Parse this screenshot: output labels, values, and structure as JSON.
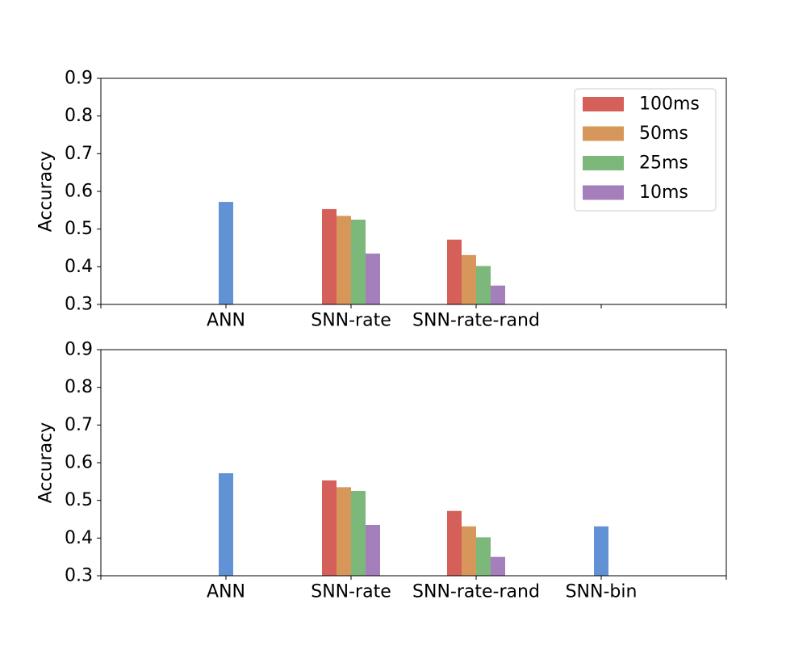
{
  "colors": {
    "100ms": "#d5605a",
    "50ms": "#d7975b",
    "25ms": "#7db87b",
    "10ms": "#a57fbb",
    "single": "#6192d6",
    "axis": "#000000",
    "legend_border": "#cccccc"
  },
  "chart_data": [
    {
      "type": "bar",
      "ylabel": "Accuracy",
      "xlabel": "",
      "ylim": [
        0.3,
        0.9
      ],
      "yticks": [
        "0.3",
        "0.4",
        "0.5",
        "0.6",
        "0.7",
        "0.8",
        "0.9"
      ],
      "xlim": [
        0,
        5
      ],
      "categories": [
        "",
        "ANN",
        "SNN-rate",
        "SNN-rate-rand",
        "",
        ""
      ],
      "legend": {
        "position": "top-right",
        "entries": [
          "100ms",
          "50ms",
          "25ms",
          "10ms"
        ]
      },
      "single_bars": [
        {
          "category": "ANN",
          "x": 1,
          "value": 0.572
        }
      ],
      "series": [
        {
          "name": "100ms",
          "values": {
            "SNN-rate": 0.553,
            "SNN-rate-rand": 0.472
          }
        },
        {
          "name": "50ms",
          "values": {
            "SNN-rate": 0.535,
            "SNN-rate-rand": 0.431
          }
        },
        {
          "name": "25ms",
          "values": {
            "SNN-rate": 0.525,
            "SNN-rate-rand": 0.402
          }
        },
        {
          "name": "10ms",
          "values": {
            "SNN-rate": 0.435,
            "SNN-rate-rand": 0.35
          }
        }
      ],
      "grouped_x": {
        "SNN-rate": 2,
        "SNN-rate-rand": 3
      }
    },
    {
      "type": "bar",
      "ylabel": "Accuracy",
      "xlabel": "",
      "ylim": [
        0.3,
        0.9
      ],
      "yticks": [
        "0.3",
        "0.4",
        "0.5",
        "0.6",
        "0.7",
        "0.8",
        "0.9"
      ],
      "xlim": [
        0,
        5
      ],
      "categories": [
        "",
        "ANN",
        "SNN-rate",
        "SNN-rate-rand",
        "SNN-bin",
        ""
      ],
      "single_bars": [
        {
          "category": "ANN",
          "x": 1,
          "value": 0.572
        },
        {
          "category": "SNN-bin",
          "x": 4,
          "value": 0.431
        }
      ],
      "series": [
        {
          "name": "100ms",
          "values": {
            "SNN-rate": 0.553,
            "SNN-rate-rand": 0.472
          }
        },
        {
          "name": "50ms",
          "values": {
            "SNN-rate": 0.535,
            "SNN-rate-rand": 0.431
          }
        },
        {
          "name": "25ms",
          "values": {
            "SNN-rate": 0.525,
            "SNN-rate-rand": 0.402
          }
        },
        {
          "name": "10ms",
          "values": {
            "SNN-rate": 0.435,
            "SNN-rate-rand": 0.35
          }
        }
      ],
      "grouped_x": {
        "SNN-rate": 2,
        "SNN-rate-rand": 3
      }
    }
  ]
}
